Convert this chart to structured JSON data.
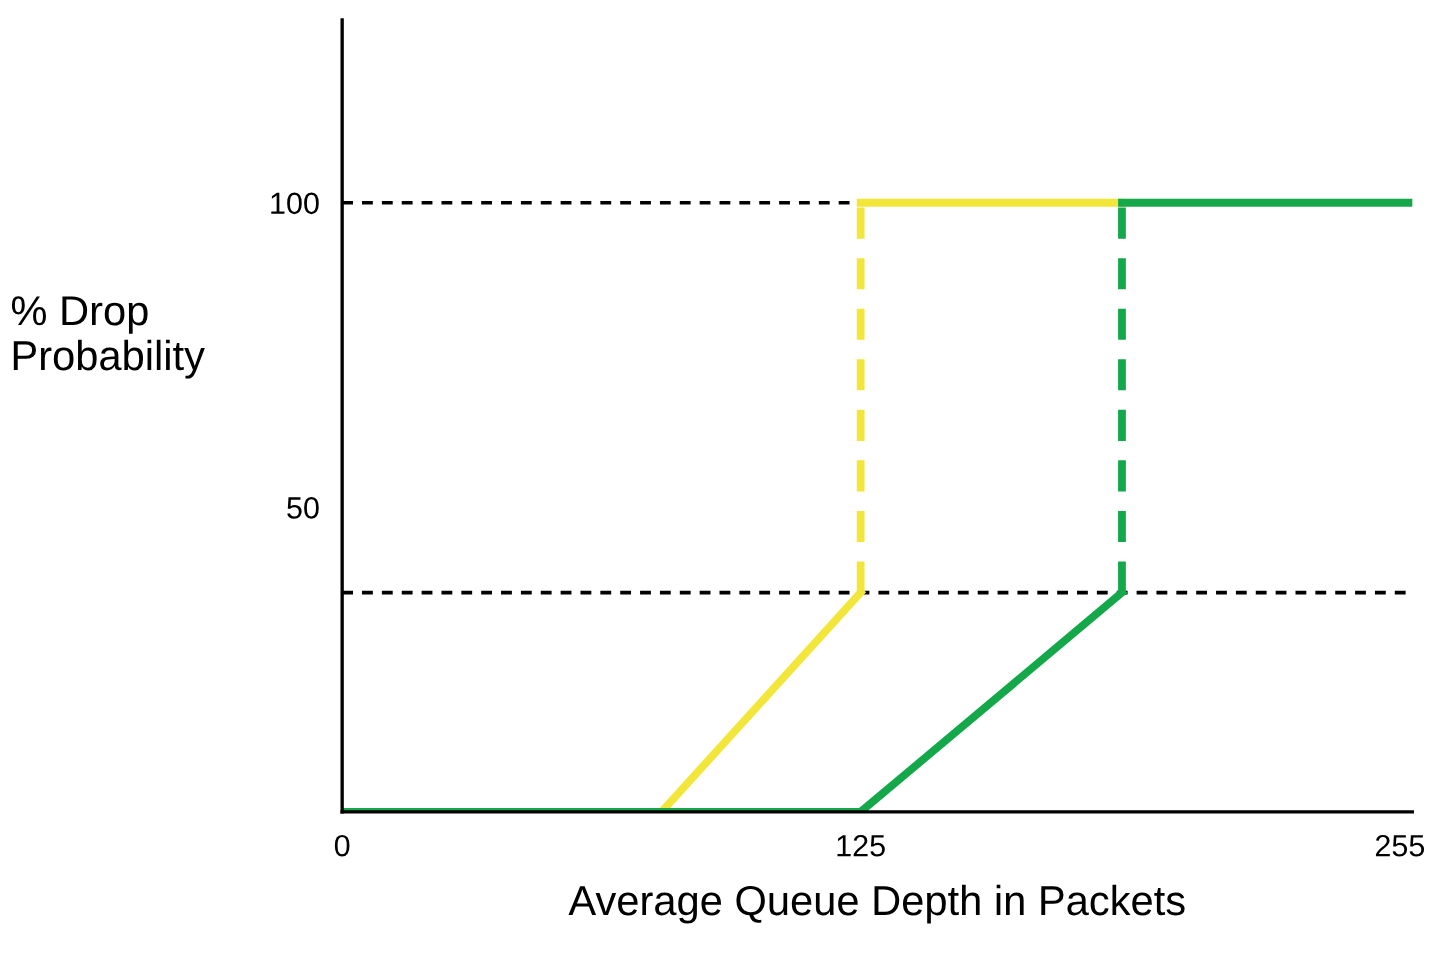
{
  "chart_data": {
    "type": "line",
    "xlabel": "Average Queue Depth in Packets",
    "ylabel": "% Drop\nProbability",
    "xlim": [
      0,
      258
    ],
    "ylim": [
      0,
      130
    ],
    "xticks": [
      0,
      125,
      255
    ],
    "yticks": [
      50,
      100
    ],
    "marker": "none",
    "series": [
      {
        "color": "#f2e63a",
        "x": [
          77,
          125
        ],
        "values": [
          0,
          36
        ],
        "line_style": "solid"
      },
      {
        "color": "#f2e63a",
        "x": [
          125,
          125
        ],
        "values": [
          36,
          100
        ],
        "line_style": "dashed"
      },
      {
        "color": "#f2e63a",
        "x": [
          125,
          188
        ],
        "values": [
          100,
          100
        ],
        "line_style": "solid"
      },
      {
        "color": "#14a84a",
        "x": [
          0,
          125,
          188
        ],
        "values": [
          0,
          0,
          36
        ],
        "line_style": "solid"
      },
      {
        "color": "#14a84a",
        "x": [
          188,
          188
        ],
        "values": [
          36,
          100
        ],
        "line_style": "dashed"
      },
      {
        "color": "#14a84a",
        "x": [
          188,
          258
        ],
        "values": [
          100,
          100
        ],
        "line_style": "solid"
      }
    ],
    "ref_lines": [
      {
        "axis": "y",
        "value": 100,
        "label": null,
        "color": "#000000",
        "line_style": "dashed"
      },
      {
        "axis": "y",
        "value": 36,
        "label": null,
        "color": "#000000",
        "line_style": "dashed"
      }
    ]
  }
}
